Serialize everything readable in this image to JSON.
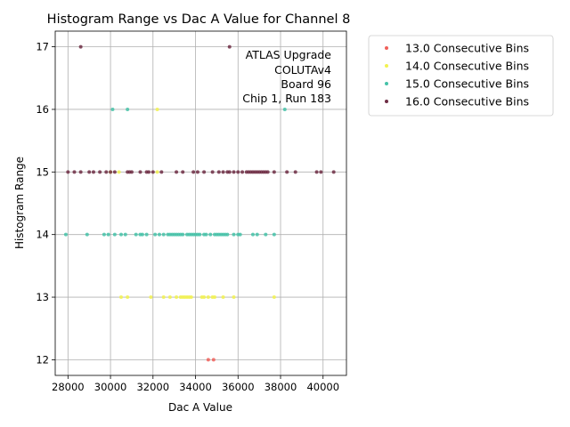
{
  "chart_data": {
    "type": "scatter",
    "title": "Histogram Range vs Dac A Value for Channel 8",
    "xlabel": "Dac A Value",
    "ylabel": "Histogram Range",
    "xlim": [
      27400,
      41100
    ],
    "ylim": [
      11.75,
      17.25
    ],
    "xticks": [
      28000,
      30000,
      32000,
      34000,
      36000,
      38000,
      40000
    ],
    "yticks": [
      12,
      13,
      14,
      15,
      16,
      17
    ],
    "grid": true,
    "legend_position": "outside-top-right",
    "annotation": [
      "ATLAS Upgrade",
      "COLUTAv4",
      "Board 96",
      "Chip 1, Run 183"
    ],
    "series": [
      {
        "name": "13.0 Consecutive Bins",
        "color": "#f0605a",
        "points": [
          [
            34600,
            12
          ],
          [
            34850,
            12
          ]
        ]
      },
      {
        "name": "14.0 Consecutive Bins",
        "color": "#f2f250",
        "points": [
          [
            30500,
            13
          ],
          [
            30800,
            13
          ],
          [
            31900,
            13
          ],
          [
            32500,
            13
          ],
          [
            32800,
            13
          ],
          [
            33100,
            13
          ],
          [
            33300,
            13
          ],
          [
            33400,
            13
          ],
          [
            33500,
            13
          ],
          [
            33600,
            13
          ],
          [
            33700,
            13
          ],
          [
            33800,
            13
          ],
          [
            34300,
            13
          ],
          [
            34400,
            13
          ],
          [
            34600,
            13
          ],
          [
            34800,
            13
          ],
          [
            34900,
            13
          ],
          [
            35300,
            13
          ],
          [
            35800,
            13
          ],
          [
            37700,
            13
          ],
          [
            30000,
            15
          ],
          [
            30400,
            15
          ],
          [
            32200,
            15
          ],
          [
            32200,
            16
          ]
        ]
      },
      {
        "name": "15.0 Consecutive Bins",
        "color": "#45c2a8",
        "points": [
          [
            27900,
            14
          ],
          [
            28900,
            14
          ],
          [
            29700,
            14
          ],
          [
            29900,
            14
          ],
          [
            30200,
            14
          ],
          [
            30500,
            14
          ],
          [
            30700,
            14
          ],
          [
            31200,
            14
          ],
          [
            31400,
            14
          ],
          [
            31500,
            14
          ],
          [
            31700,
            14
          ],
          [
            32100,
            14
          ],
          [
            32300,
            14
          ],
          [
            32500,
            14
          ],
          [
            32700,
            14
          ],
          [
            32800,
            14
          ],
          [
            32900,
            14
          ],
          [
            33000,
            14
          ],
          [
            33100,
            14
          ],
          [
            33200,
            14
          ],
          [
            33300,
            14
          ],
          [
            33400,
            14
          ],
          [
            33600,
            14
          ],
          [
            33700,
            14
          ],
          [
            33800,
            14
          ],
          [
            33900,
            14
          ],
          [
            34000,
            14
          ],
          [
            34100,
            14
          ],
          [
            34200,
            14
          ],
          [
            34400,
            14
          ],
          [
            34500,
            14
          ],
          [
            34700,
            14
          ],
          [
            34900,
            14
          ],
          [
            35000,
            14
          ],
          [
            35100,
            14
          ],
          [
            35200,
            14
          ],
          [
            35300,
            14
          ],
          [
            35400,
            14
          ],
          [
            35500,
            14
          ],
          [
            35800,
            14
          ],
          [
            36000,
            14
          ],
          [
            36100,
            14
          ],
          [
            36700,
            14
          ],
          [
            36900,
            14
          ],
          [
            37300,
            14
          ],
          [
            37700,
            14
          ],
          [
            30100,
            16
          ],
          [
            30800,
            16
          ],
          [
            38200,
            16
          ]
        ]
      },
      {
        "name": "16.0 Consecutive Bins",
        "color": "#6e2d44",
        "points": [
          [
            28000,
            15
          ],
          [
            28300,
            15
          ],
          [
            28600,
            15
          ],
          [
            29000,
            15
          ],
          [
            29200,
            15
          ],
          [
            29500,
            15
          ],
          [
            29800,
            15
          ],
          [
            30000,
            15
          ],
          [
            30200,
            15
          ],
          [
            30800,
            15
          ],
          [
            30900,
            15
          ],
          [
            31000,
            15
          ],
          [
            31400,
            15
          ],
          [
            31700,
            15
          ],
          [
            31800,
            15
          ],
          [
            32000,
            15
          ],
          [
            32400,
            15
          ],
          [
            33100,
            15
          ],
          [
            33400,
            15
          ],
          [
            33900,
            15
          ],
          [
            34100,
            15
          ],
          [
            34400,
            15
          ],
          [
            34800,
            15
          ],
          [
            35100,
            15
          ],
          [
            35300,
            15
          ],
          [
            35500,
            15
          ],
          [
            35600,
            15
          ],
          [
            35800,
            15
          ],
          [
            36000,
            15
          ],
          [
            36200,
            15
          ],
          [
            36400,
            15
          ],
          [
            36500,
            15
          ],
          [
            36600,
            15
          ],
          [
            36700,
            15
          ],
          [
            36800,
            15
          ],
          [
            36900,
            15
          ],
          [
            37000,
            15
          ],
          [
            37100,
            15
          ],
          [
            37200,
            15
          ],
          [
            37300,
            15
          ],
          [
            37400,
            15
          ],
          [
            37700,
            15
          ],
          [
            38300,
            15
          ],
          [
            38700,
            15
          ],
          [
            39700,
            15
          ],
          [
            39900,
            15
          ],
          [
            40500,
            15
          ],
          [
            28600,
            17
          ],
          [
            35600,
            17
          ]
        ]
      }
    ]
  }
}
